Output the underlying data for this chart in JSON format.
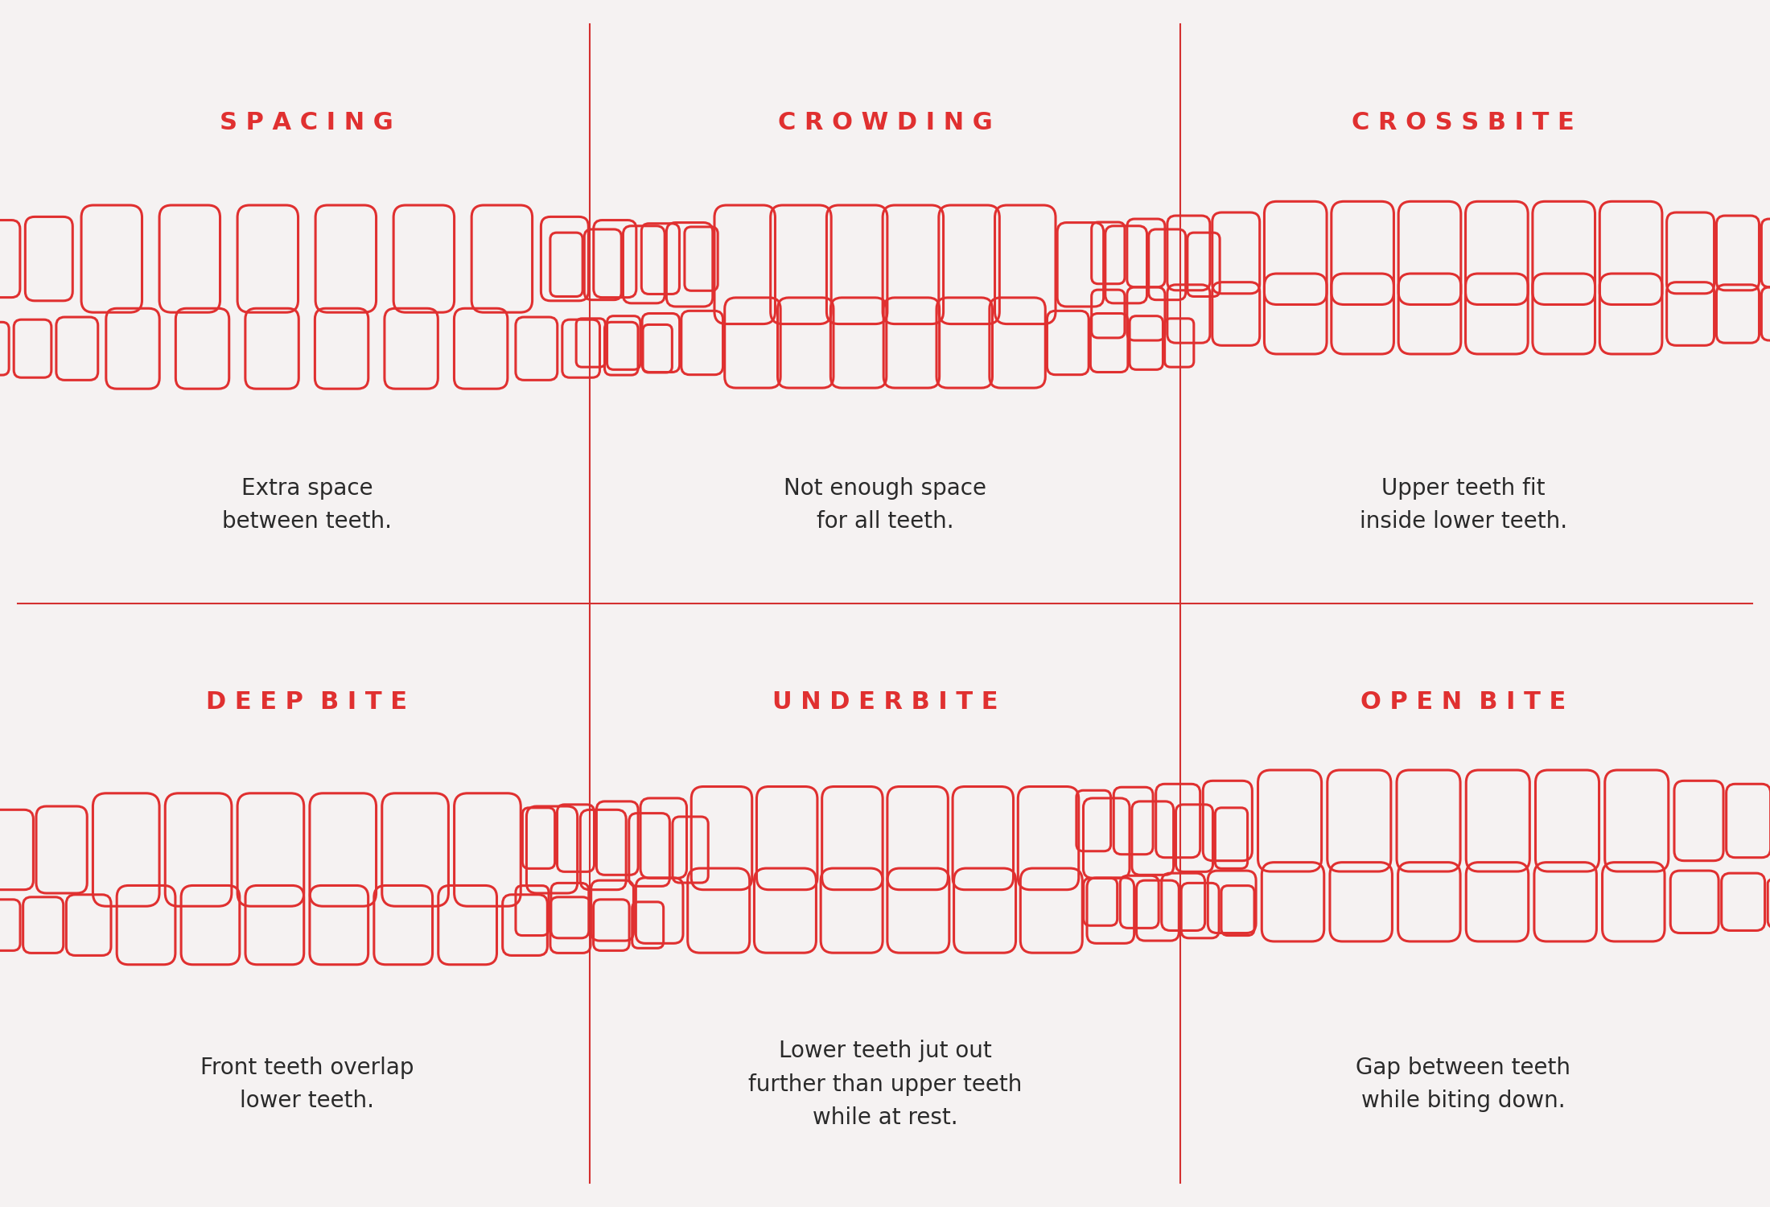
{
  "background_color": "#f5f2f2",
  "line_color": "#e03030",
  "divider_color": "#d43030",
  "text_color": "#2a2a2a",
  "title_color": "#e03030",
  "titles": [
    "S P A C I N G",
    "C R O W D I N G",
    "C R O S S B I T E",
    "D E E P  B I T E",
    "U N D E R B I T E",
    "O P E N  B I T E"
  ],
  "descriptions": [
    "Extra space\nbetween teeth.",
    "Not enough space\nfor all teeth.",
    "Upper teeth fit\ninside lower teeth.",
    "Front teeth overlap\nlower teeth.",
    "Lower teeth jut out\nfurther than upper teeth\nwhile at rest.",
    "Gap between teeth\nwhile biting down."
  ],
  "title_fontsize": 22,
  "desc_fontsize": 20,
  "grid_rows": 2,
  "grid_cols": 3
}
